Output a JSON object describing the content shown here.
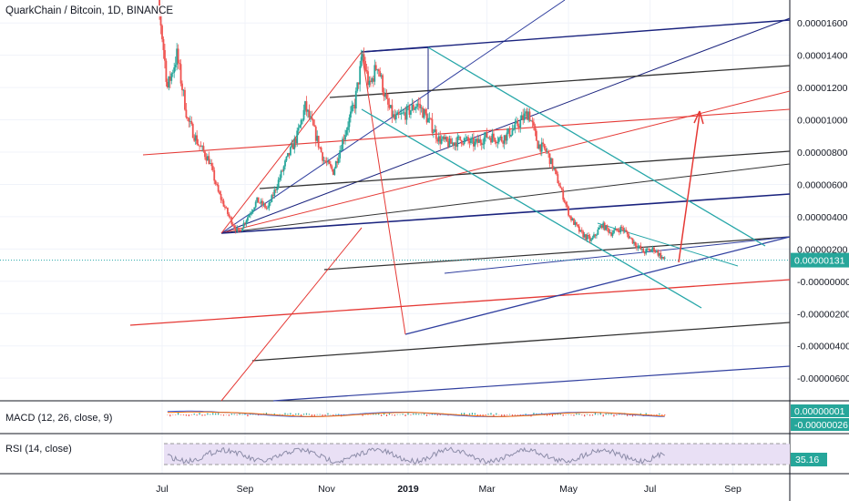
{
  "chart_data": {
    "type": "candlestick",
    "symbol_label": "QuarkChain / Bitcoin, 1D, BINANCE",
    "x_ticks": [
      "Jul",
      "Sep",
      "Nov",
      "2019",
      "Mar",
      "May",
      "Jul",
      "Sep"
    ],
    "y_ticks": [
      "0.00001600",
      "0.00001400",
      "0.00001200",
      "0.00001000",
      "0.00000800",
      "0.00000600",
      "0.00000400",
      "0.00000200",
      "-0.00000000",
      "-0.00000200",
      "-0.00000400",
      "-0.00000600"
    ],
    "y_range": [
      -7.5e-06,
      2.4e-05
    ],
    "price_path": [
      [
        "2018-06-20",
        2.3e-05
      ],
      [
        "2018-06-30",
        1.6e-05
      ],
      [
        "2018-07-05",
        1.2e-05
      ],
      [
        "2018-07-12",
        1.4e-05
      ],
      [
        "2018-07-20",
        1e-05
      ],
      [
        "2018-07-28",
        8.5e-06
      ],
      [
        "2018-08-05",
        7.5e-06
      ],
      [
        "2018-08-12",
        5.5e-06
      ],
      [
        "2018-08-20",
        4e-06
      ],
      [
        "2018-08-27",
        3e-06
      ],
      [
        "2018-09-03",
        4e-06
      ],
      [
        "2018-09-10",
        5e-06
      ],
      [
        "2018-09-18",
        4.5e-06
      ],
      [
        "2018-09-25",
        6e-06
      ],
      [
        "2018-10-02",
        7.5e-06
      ],
      [
        "2018-10-10",
        9e-06
      ],
      [
        "2018-10-16",
        1.08e-05
      ],
      [
        "2018-10-22",
        9.5e-06
      ],
      [
        "2018-10-30",
        7.5e-06
      ],
      [
        "2018-11-06",
        6.8e-06
      ],
      [
        "2018-11-14",
        9e-06
      ],
      [
        "2018-11-22",
        1.1e-05
      ],
      [
        "2018-11-28",
        1.4e-05
      ],
      [
        "2018-12-03",
        1.2e-05
      ],
      [
        "2018-12-09",
        1.35e-05
      ],
      [
        "2018-12-16",
        1.1e-05
      ],
      [
        "2018-12-22",
        1e-05
      ],
      [
        "2019-01-01",
        1.05e-05
      ],
      [
        "2019-01-08",
        1.1e-05
      ],
      [
        "2019-01-16",
        1e-05
      ],
      [
        "2019-01-24",
        8.8e-06
      ],
      [
        "2019-02-01",
        8.5e-06
      ],
      [
        "2019-02-10",
        8.8e-06
      ],
      [
        "2019-02-20",
        8.5e-06
      ],
      [
        "2019-03-01",
        9e-06
      ],
      [
        "2019-03-12",
        8.8e-06
      ],
      [
        "2019-03-22",
        9.5e-06
      ],
      [
        "2019-04-01",
        1.05e-05
      ],
      [
        "2019-04-08",
        8.5e-06
      ],
      [
        "2019-04-15",
        8e-06
      ],
      [
        "2019-04-24",
        6e-06
      ],
      [
        "2019-05-02",
        4e-06
      ],
      [
        "2019-05-10",
        3e-06
      ],
      [
        "2019-05-18",
        2.5e-06
      ],
      [
        "2019-05-26",
        3.5e-06
      ],
      [
        "2019-06-02",
        3e-06
      ],
      [
        "2019-06-10",
        3.3e-06
      ],
      [
        "2019-06-18",
        2.5e-06
      ],
      [
        "2019-06-26",
        1.8e-06
      ],
      [
        "2019-07-04",
        2e-06
      ],
      [
        "2019-07-12",
        1.3e-06
      ]
    ],
    "last_price": "0.00000131",
    "macd": {
      "label": "MACD (12, 26, close, 9)",
      "value_macd": "0.00000001",
      "value_signal": "-0.00000026"
    },
    "rsi": {
      "label": "RSI (14, close)",
      "value": "35.16"
    },
    "colors": {
      "up": "#26a69a",
      "down": "#ef5350",
      "dark_blue": "#1a237e",
      "navy": "#303f9f",
      "teal": "#26a6a8",
      "black": "#333333",
      "red": "#e53935",
      "rsi_line": "#8c8ca8",
      "rsi_band": "#e9e0f5",
      "axis_text": "#131722",
      "last_price_bg": "#2196f3"
    }
  }
}
